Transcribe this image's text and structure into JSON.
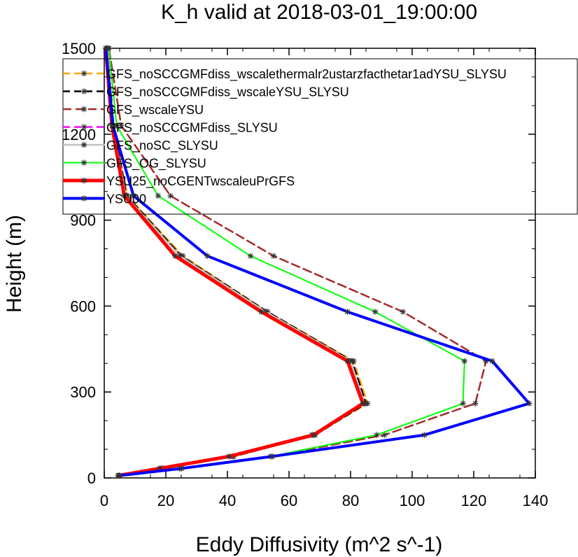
{
  "chart_data": {
    "type": "line",
    "title": "K_h valid at 2018-03-01_19:00:00",
    "xlabel": "Eddy Diffusivity (m^2 s^-1)",
    "ylabel": "Height (m)",
    "xlim": [
      0,
      140
    ],
    "ylim": [
      0,
      1500
    ],
    "x_ticks": [
      0,
      20,
      40,
      60,
      80,
      100,
      120,
      140
    ],
    "y_ticks": [
      0,
      300,
      600,
      900,
      1200,
      1500
    ],
    "legend_position": "top",
    "y": [
      8,
      33,
      75,
      150,
      260,
      408,
      580,
      775,
      985,
      1230,
      1500
    ],
    "series": [
      {
        "name": "GFS_noSCCGMFdiss_wscalethermalr2ustarzfacthetar1adYSU_SLYSU",
        "color": "#ffa500",
        "dash": "10 6",
        "width": 2.5,
        "values": [
          5,
          19,
          42,
          68,
          85.5,
          81,
          53,
          25.5,
          7.5,
          3,
          1
        ]
      },
      {
        "name": "GFS_noSCCGMFdiss_wscaleYSU_SLYSU",
        "color": "#000000",
        "dash": "10 6",
        "width": 2.5,
        "values": [
          4.8,
          19,
          42,
          68.5,
          85,
          80.5,
          53,
          25,
          7.3,
          3,
          1
        ]
      },
      {
        "name": "GFS_wscaleYSU",
        "color": "#a52a2a",
        "dash": "12 6",
        "width": 2.5,
        "values": [
          5,
          25,
          54.5,
          91,
          120.5,
          124,
          97,
          55,
          21.5,
          5.5,
          1.5
        ]
      },
      {
        "name": "GFS_noSCCGMFdiss_SLYSU",
        "color": "#ff00ff",
        "dash": "10 6",
        "width": 2.5,
        "values": [
          4.5,
          18.5,
          41.5,
          67.5,
          84.5,
          80,
          52.5,
          24.5,
          7,
          2.8,
          1
        ]
      },
      {
        "name": "GFS_noSC_SLYSU",
        "color": "#c0c0c0",
        "dash": "",
        "width": 2.5,
        "values": [
          4.5,
          18.5,
          41.5,
          67.5,
          84.5,
          80,
          52.5,
          24.5,
          7,
          2.8,
          1
        ]
      },
      {
        "name": "GFS_OG_SLYSU",
        "color": "#00ff00",
        "dash": "",
        "width": 2,
        "values": [
          5,
          24.5,
          54,
          88.5,
          116.5,
          117,
          88,
          47.5,
          17.5,
          4,
          1.5
        ]
      },
      {
        "name": "YSU25_noCGENTwscaleuPrGFS",
        "color": "#ff0000",
        "dash": "",
        "width": 5,
        "values": [
          4.5,
          18,
          40.5,
          68,
          84,
          79,
          51,
          23,
          6.5,
          2.5,
          0.5
        ]
      },
      {
        "name": "YSU00",
        "color": "#0000ff",
        "dash": "",
        "width": 4,
        "values": [
          5,
          25,
          54.5,
          104,
          138,
          126,
          79,
          33.5,
          9.5,
          2.8,
          0.5
        ]
      }
    ]
  }
}
